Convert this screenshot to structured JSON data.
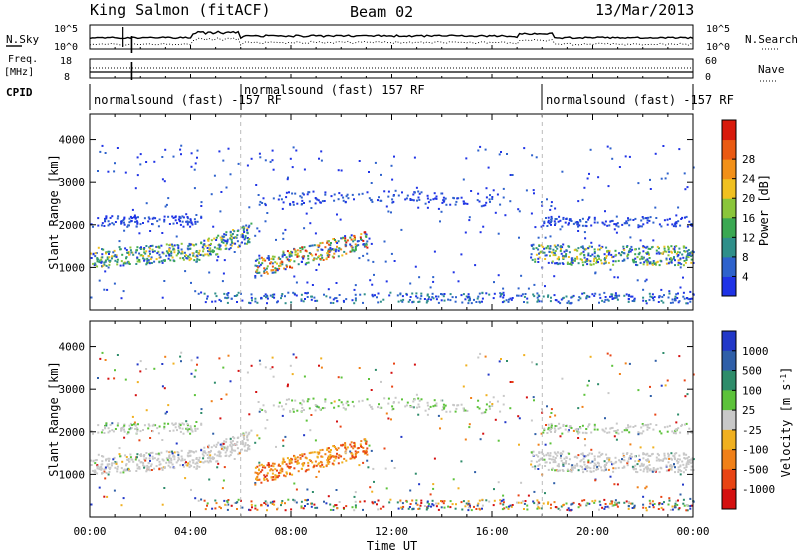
{
  "header": {
    "station": "King Salmon (fitACF)",
    "beam": "Beam 02",
    "date": "13/Mar/2013"
  },
  "strip": {
    "nsky_label": "N.Sky",
    "nsky_max": "10^5",
    "nsky_min": "10^0",
    "nsearch_label": "N.Search",
    "nsearch_max": "10^5",
    "nsearch_min": "10^0",
    "freq_label": "Freq.",
    "freq_unit": "[MHz]",
    "freq_max": "18",
    "freq_min": "8",
    "nave_label": "Nave",
    "nave_max": "60",
    "nave_min": "0",
    "cpid_label": "CPID"
  },
  "cpid": [
    {
      "start": 0,
      "end": 6,
      "label": "normalsound (fast) -157 RF"
    },
    {
      "start": 6,
      "end": 18,
      "label": "normalsound (fast) 157 RF"
    },
    {
      "start": 18,
      "end": 24,
      "label": "normalsound (fast) -157 RF"
    }
  ],
  "chart_data": [
    {
      "type": "heatmap",
      "parameter": "Power",
      "ylabel": "Slant Range [km]",
      "ylim": [
        0,
        4600
      ],
      "xlim_hours": [
        0,
        24
      ],
      "y_ticks": [
        "1000",
        "2000",
        "3000",
        "4000"
      ],
      "colorbar": {
        "label": "Power [dB]",
        "ticks": [
          "4",
          "8",
          "12",
          "16",
          "20",
          "24",
          "28"
        ],
        "range": [
          0,
          30
        ],
        "colors": [
          "#1f33e6",
          "#2e62cc",
          "#2f8f8a",
          "#3aa852",
          "#8ac53a",
          "#f0c020",
          "#f29018",
          "#ea5a12",
          "#d81a0c"
        ]
      },
      "features": [
        {
          "name": "lower band",
          "x": [
            0,
            11
          ],
          "range_km": [
            1000,
            1700
          ],
          "power_db": [
            8,
            26
          ]
        },
        {
          "name": "lower band",
          "x": [
            17.5,
            24
          ],
          "range_km": [
            1000,
            1500
          ],
          "power_db": [
            6,
            20
          ]
        },
        {
          "name": "upper band",
          "x": [
            0,
            4.5
          ],
          "range_km": [
            2000,
            2200
          ],
          "power_db": [
            4,
            8
          ]
        },
        {
          "name": "upper band",
          "x": [
            18,
            24
          ],
          "range_km": [
            2000,
            2300
          ],
          "power_db": [
            4,
            8
          ]
        },
        {
          "name": "far echoes",
          "x": [
            7,
            16
          ],
          "range_km": [
            2500,
            2900
          ],
          "power_db": [
            4,
            8
          ]
        },
        {
          "name": "ground scatter",
          "x": [
            4.5,
            24
          ],
          "range_km": [
            180,
            400
          ],
          "power_db": [
            4,
            12
          ]
        }
      ]
    },
    {
      "type": "heatmap",
      "parameter": "Velocity",
      "ylabel": "Slant Range [km]",
      "xlabel": "Time UT",
      "ylim": [
        0,
        4600
      ],
      "xlim_hours": [
        0,
        24
      ],
      "x_ticks": [
        "00:00",
        "04:00",
        "08:00",
        "12:00",
        "16:00",
        "20:00",
        "00:00"
      ],
      "y_ticks": [
        "1000",
        "2000",
        "3000",
        "4000"
      ],
      "colorbar": {
        "label": "Velocity [m s^-1]",
        "ticks": [
          "1000",
          "500",
          "100",
          "25",
          "-25",
          "-100",
          "-500",
          "-1000"
        ],
        "colors": [
          "#2238c8",
          "#2f5fa8",
          "#2e8c6a",
          "#5cc23a",
          "#c8c8c8",
          "#f0b020",
          "#f08018",
          "#e84414",
          "#d41010"
        ]
      },
      "features": [
        {
          "name": "ground scatter (grey)",
          "x": [
            0,
            24
          ],
          "range_km": [
            1000,
            2200
          ],
          "velocity_ms": [
            -25,
            25
          ]
        },
        {
          "name": "orange flow",
          "x": [
            6.5,
            11
          ],
          "range_km": [
            900,
            1800
          ],
          "velocity_ms": [
            -500,
            -100
          ]
        }
      ]
    }
  ]
}
